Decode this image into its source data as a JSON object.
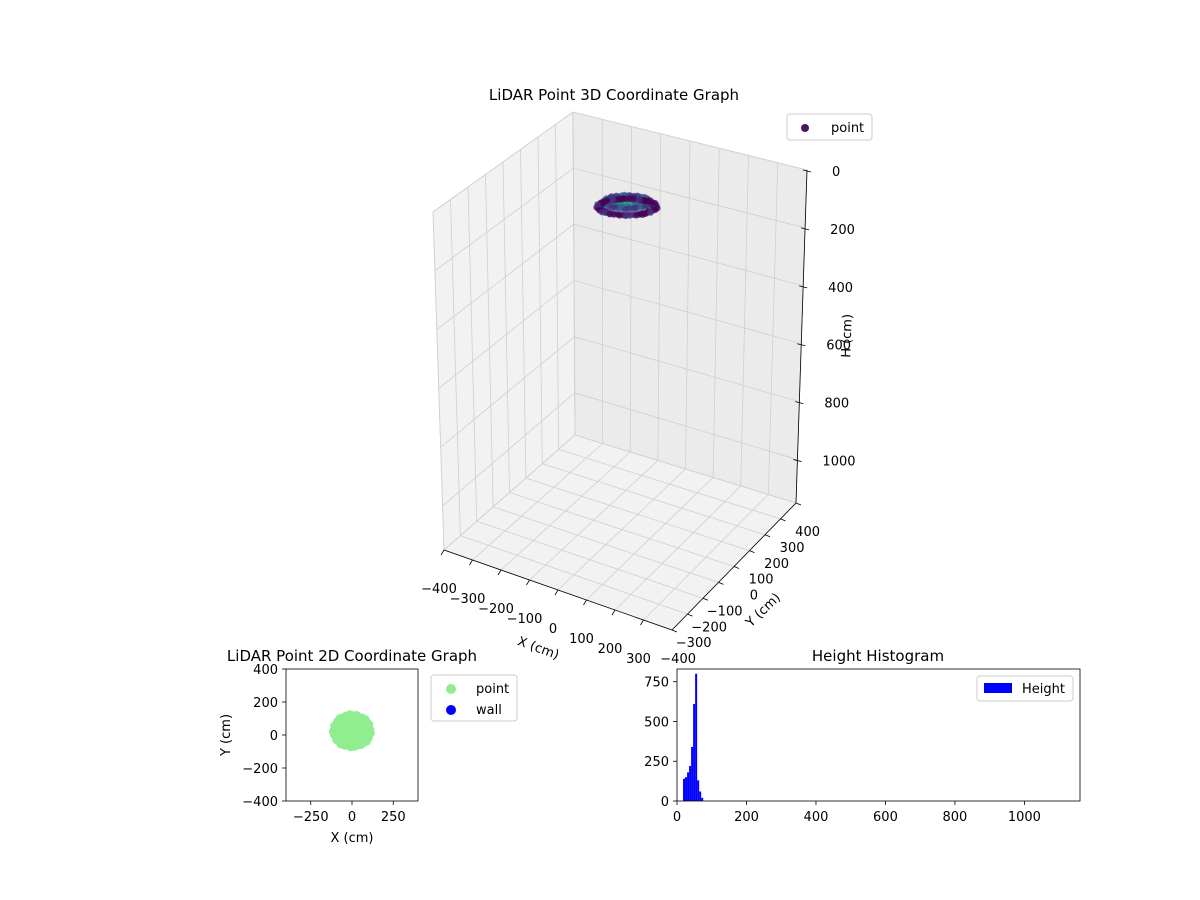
{
  "chart_data": [
    {
      "type": "scatter",
      "projection": "3d",
      "title": "LiDAR Point 3D Coordinate Graph",
      "xlabel": "X (cm)",
      "ylabel": "Y (cm)",
      "zlabel": "H (cm)",
      "xlim": [
        -400,
        400
      ],
      "ylim": [
        -400,
        400
      ],
      "zlim": [
        1150,
        0
      ],
      "xticks": [
        "−400",
        "−300",
        "−200",
        "−100",
        "0",
        "100",
        "200",
        "300"
      ],
      "yticks": [
        "−400",
        "−300",
        "−200",
        "−100",
        "0",
        "100",
        "200",
        "300",
        "400"
      ],
      "zticks": [
        "0",
        "200",
        "400",
        "600",
        "800",
        "1000"
      ],
      "grid": true,
      "legend": {
        "placement": "top-right",
        "entries": [
          {
            "label": "point",
            "color": "#46186b"
          }
        ]
      },
      "cluster": {
        "x_center": 0,
        "y_center": 0,
        "radius": 120,
        "h_range": [
          0,
          80
        ]
      },
      "colormap": "viridis"
    },
    {
      "type": "scatter",
      "title": "LiDAR Point 2D Coordinate Graph",
      "xlabel": "X (cm)",
      "ylabel": "Y (cm)",
      "xlim": [
        -400,
        400
      ],
      "ylim": [
        -400,
        400
      ],
      "xticks": [
        -250,
        0,
        250
      ],
      "yticks": [
        -400,
        -200,
        0,
        200,
        400
      ],
      "xtick_labels": [
        "−250",
        "0",
        "250"
      ],
      "ytick_labels": [
        "−400",
        "−200",
        "0",
        "200",
        "400"
      ],
      "series": [
        {
          "name": "point",
          "color": "#90ee90",
          "cluster": {
            "x_center": 0,
            "y_center": 25,
            "radius": 115
          }
        },
        {
          "name": "wall",
          "color": "#0000ff",
          "points": []
        }
      ],
      "legend": {
        "placement": "outside-right"
      }
    },
    {
      "type": "bar",
      "histogram": true,
      "title": "Height Histogram",
      "xlim": [
        0,
        1160
      ],
      "ylim": [
        0,
        830
      ],
      "xticks": [
        0,
        200,
        400,
        600,
        800,
        1000
      ],
      "yticks": [
        0,
        250,
        500,
        750
      ],
      "bin_width": 5.8,
      "bins": [
        {
          "x": 17.4,
          "count": 140
        },
        {
          "x": 23.2,
          "count": 150
        },
        {
          "x": 29.0,
          "count": 180
        },
        {
          "x": 34.8,
          "count": 220
        },
        {
          "x": 40.6,
          "count": 340
        },
        {
          "x": 46.4,
          "count": 610
        },
        {
          "x": 52.2,
          "count": 800
        },
        {
          "x": 58.0,
          "count": 130
        },
        {
          "x": 63.8,
          "count": 60
        },
        {
          "x": 69.6,
          "count": 20
        }
      ],
      "series": [
        {
          "name": "Height",
          "color": "#0000ff"
        }
      ],
      "legend": {
        "placement": "top-right"
      }
    }
  ]
}
